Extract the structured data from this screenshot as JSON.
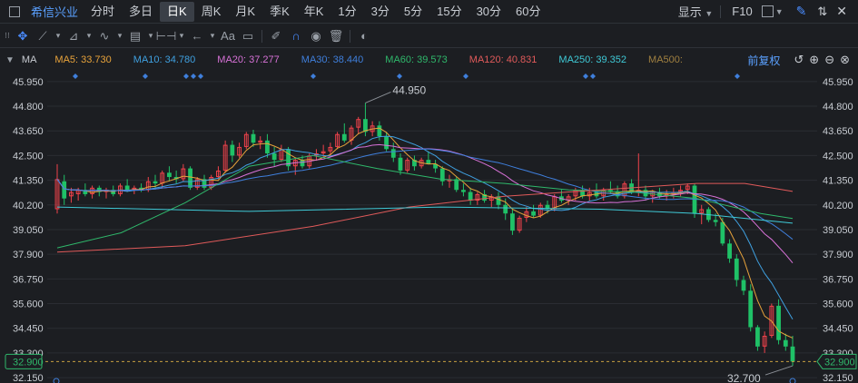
{
  "header": {
    "stock_name": "希信兴业",
    "periods": [
      "分时",
      "多日",
      "日K",
      "周K",
      "月K",
      "季K",
      "年K",
      "1分",
      "3分",
      "5分",
      "15分",
      "30分",
      "60分"
    ],
    "active_period": "日K",
    "display_label": "显示",
    "f10_label": "F10"
  },
  "toolbar": {
    "text_tool_label": "Aa",
    "icons": [
      "move-icon",
      "line-icon",
      "polyline-icon",
      "wave-icon",
      "fib-icon",
      "range-icon",
      "arrow-left-icon",
      "text-icon",
      "comment-icon",
      "pen-icon",
      "magnet-icon",
      "eye-icon",
      "trash-icon",
      "toggle-icon"
    ]
  },
  "ma_bar": {
    "indicator": "MA",
    "items": [
      {
        "label": "MA5: 33.730",
        "color": "#e8a33b"
      },
      {
        "label": "MA10: 34.780",
        "color": "#3fa0e0"
      },
      {
        "label": "MA20: 37.277",
        "color": "#d872d8"
      },
      {
        "label": "MA30: 38.440",
        "color": "#3f7fdc"
      },
      {
        "label": "MA60: 39.573",
        "color": "#2fb86b"
      },
      {
        "label": "MA120: 40.831",
        "color": "#e05a5a"
      },
      {
        "label": "MA250: 39.352",
        "color": "#3fc9d6"
      },
      {
        "label": "MA500:",
        "color": "#a08040"
      }
    ],
    "adjust_label": "前复权"
  },
  "chart_data": {
    "type": "candlestick",
    "ylim": [
      31.9,
      46.45
    ],
    "y_ticks": [
      "45.950",
      "44.800",
      "43.650",
      "42.500",
      "41.350",
      "40.200",
      "39.050",
      "37.900",
      "36.750",
      "35.600",
      "34.450",
      "33.300",
      "32.150"
    ],
    "current_price": "32.900",
    "high_label": "44.950",
    "low_label": "32.700",
    "up_color": "#f0424b",
    "down_color": "#1fc167",
    "candles": [
      {
        "o": 40.0,
        "h": 42.1,
        "l": 39.8,
        "c": 41.4
      },
      {
        "o": 41.3,
        "h": 41.6,
        "l": 40.2,
        "c": 40.5
      },
      {
        "o": 40.6,
        "h": 41.0,
        "l": 40.3,
        "c": 40.8
      },
      {
        "o": 40.7,
        "h": 41.0,
        "l": 40.4,
        "c": 40.9
      },
      {
        "o": 40.9,
        "h": 41.2,
        "l": 40.6,
        "c": 40.7
      },
      {
        "o": 40.7,
        "h": 41.1,
        "l": 40.5,
        "c": 41.0
      },
      {
        "o": 41.0,
        "h": 41.1,
        "l": 40.6,
        "c": 40.8
      },
      {
        "o": 40.8,
        "h": 41.0,
        "l": 40.5,
        "c": 40.9
      },
      {
        "o": 40.9,
        "h": 41.1,
        "l": 40.6,
        "c": 40.7
      },
      {
        "o": 40.7,
        "h": 41.2,
        "l": 40.6,
        "c": 41.1
      },
      {
        "o": 41.1,
        "h": 41.4,
        "l": 40.8,
        "c": 40.9
      },
      {
        "o": 40.9,
        "h": 41.1,
        "l": 40.7,
        "c": 41.0
      },
      {
        "o": 41.0,
        "h": 41.2,
        "l": 40.8,
        "c": 40.9
      },
      {
        "o": 40.9,
        "h": 41.5,
        "l": 40.8,
        "c": 41.3
      },
      {
        "o": 41.3,
        "h": 41.6,
        "l": 41.0,
        "c": 41.2
      },
      {
        "o": 41.2,
        "h": 41.8,
        "l": 41.0,
        "c": 41.7
      },
      {
        "o": 41.7,
        "h": 42.0,
        "l": 41.3,
        "c": 41.5
      },
      {
        "o": 41.5,
        "h": 41.8,
        "l": 41.2,
        "c": 41.4
      },
      {
        "o": 41.4,
        "h": 42.1,
        "l": 41.3,
        "c": 41.9
      },
      {
        "o": 41.9,
        "h": 42.0,
        "l": 40.9,
        "c": 41.0
      },
      {
        "o": 41.0,
        "h": 41.5,
        "l": 40.9,
        "c": 41.4
      },
      {
        "o": 41.4,
        "h": 41.6,
        "l": 40.9,
        "c": 41.0
      },
      {
        "o": 41.0,
        "h": 41.6,
        "l": 40.9,
        "c": 41.5
      },
      {
        "o": 41.5,
        "h": 42.0,
        "l": 41.4,
        "c": 41.8
      },
      {
        "o": 41.8,
        "h": 43.2,
        "l": 41.7,
        "c": 43.0
      },
      {
        "o": 43.0,
        "h": 43.2,
        "l": 42.2,
        "c": 42.5
      },
      {
        "o": 42.5,
        "h": 43.1,
        "l": 42.4,
        "c": 42.9
      },
      {
        "o": 42.9,
        "h": 43.6,
        "l": 42.8,
        "c": 43.5
      },
      {
        "o": 43.5,
        "h": 43.7,
        "l": 42.9,
        "c": 43.1
      },
      {
        "o": 43.1,
        "h": 43.4,
        "l": 42.8,
        "c": 43.2
      },
      {
        "o": 43.2,
        "h": 43.5,
        "l": 42.4,
        "c": 42.6
      },
      {
        "o": 42.6,
        "h": 42.9,
        "l": 42.0,
        "c": 42.3
      },
      {
        "o": 42.3,
        "h": 43.0,
        "l": 42.2,
        "c": 42.8
      },
      {
        "o": 42.8,
        "h": 42.9,
        "l": 41.8,
        "c": 42.0
      },
      {
        "o": 42.0,
        "h": 42.4,
        "l": 41.6,
        "c": 42.3
      },
      {
        "o": 42.3,
        "h": 42.5,
        "l": 41.9,
        "c": 42.0
      },
      {
        "o": 42.0,
        "h": 42.6,
        "l": 41.9,
        "c": 42.5
      },
      {
        "o": 42.5,
        "h": 42.8,
        "l": 42.3,
        "c": 42.6
      },
      {
        "o": 42.6,
        "h": 43.0,
        "l": 42.4,
        "c": 42.7
      },
      {
        "o": 42.7,
        "h": 43.1,
        "l": 42.5,
        "c": 42.9
      },
      {
        "o": 42.9,
        "h": 43.6,
        "l": 42.8,
        "c": 43.5
      },
      {
        "o": 43.5,
        "h": 44.0,
        "l": 43.1,
        "c": 43.2
      },
      {
        "o": 43.2,
        "h": 43.9,
        "l": 43.0,
        "c": 43.8
      },
      {
        "o": 43.8,
        "h": 44.3,
        "l": 43.5,
        "c": 44.2
      },
      {
        "o": 44.2,
        "h": 44.95,
        "l": 43.4,
        "c": 43.6
      },
      {
        "o": 43.6,
        "h": 44.1,
        "l": 43.4,
        "c": 43.9
      },
      {
        "o": 43.9,
        "h": 44.1,
        "l": 43.2,
        "c": 43.4
      },
      {
        "o": 43.4,
        "h": 43.6,
        "l": 42.7,
        "c": 42.8
      },
      {
        "o": 42.8,
        "h": 43.1,
        "l": 42.2,
        "c": 42.4
      },
      {
        "o": 42.4,
        "h": 42.6,
        "l": 41.6,
        "c": 41.8
      },
      {
        "o": 41.8,
        "h": 42.4,
        "l": 41.7,
        "c": 42.3
      },
      {
        "o": 42.3,
        "h": 42.5,
        "l": 41.8,
        "c": 42.0
      },
      {
        "o": 42.0,
        "h": 42.4,
        "l": 41.9,
        "c": 42.3
      },
      {
        "o": 42.3,
        "h": 42.7,
        "l": 42.1,
        "c": 42.1
      },
      {
        "o": 42.1,
        "h": 42.3,
        "l": 41.7,
        "c": 41.9
      },
      {
        "o": 41.9,
        "h": 42.0,
        "l": 41.1,
        "c": 41.3
      },
      {
        "o": 41.3,
        "h": 41.6,
        "l": 41.0,
        "c": 41.4
      },
      {
        "o": 41.4,
        "h": 41.5,
        "l": 40.8,
        "c": 40.9
      },
      {
        "o": 40.9,
        "h": 41.2,
        "l": 40.6,
        "c": 40.8
      },
      {
        "o": 40.8,
        "h": 41.0,
        "l": 40.2,
        "c": 40.4
      },
      {
        "o": 40.4,
        "h": 40.8,
        "l": 40.2,
        "c": 40.7
      },
      {
        "o": 40.7,
        "h": 40.9,
        "l": 40.3,
        "c": 40.4
      },
      {
        "o": 40.4,
        "h": 40.7,
        "l": 40.1,
        "c": 40.6
      },
      {
        "o": 40.6,
        "h": 40.8,
        "l": 40.0,
        "c": 40.2
      },
      {
        "o": 40.2,
        "h": 40.5,
        "l": 39.5,
        "c": 39.8
      },
      {
        "o": 39.8,
        "h": 40.0,
        "l": 38.8,
        "c": 39.0
      },
      {
        "o": 39.0,
        "h": 39.7,
        "l": 38.9,
        "c": 39.6
      },
      {
        "o": 39.6,
        "h": 40.1,
        "l": 39.4,
        "c": 39.9
      },
      {
        "o": 39.9,
        "h": 40.2,
        "l": 39.6,
        "c": 39.7
      },
      {
        "o": 39.7,
        "h": 40.3,
        "l": 39.6,
        "c": 40.2
      },
      {
        "o": 40.2,
        "h": 40.4,
        "l": 39.8,
        "c": 40.0
      },
      {
        "o": 40.0,
        "h": 40.7,
        "l": 39.9,
        "c": 40.6
      },
      {
        "o": 40.6,
        "h": 40.9,
        "l": 40.3,
        "c": 40.4
      },
      {
        "o": 40.4,
        "h": 40.7,
        "l": 40.2,
        "c": 40.6
      },
      {
        "o": 40.6,
        "h": 41.0,
        "l": 40.4,
        "c": 40.9
      },
      {
        "o": 40.9,
        "h": 41.1,
        "l": 40.5,
        "c": 40.6
      },
      {
        "o": 40.6,
        "h": 41.0,
        "l": 40.4,
        "c": 40.8
      },
      {
        "o": 40.8,
        "h": 41.2,
        "l": 40.5,
        "c": 40.6
      },
      {
        "o": 40.6,
        "h": 41.0,
        "l": 40.4,
        "c": 40.9
      },
      {
        "o": 40.9,
        "h": 41.3,
        "l": 40.7,
        "c": 40.8
      },
      {
        "o": 40.8,
        "h": 41.1,
        "l": 40.5,
        "c": 40.6
      },
      {
        "o": 40.6,
        "h": 41.3,
        "l": 40.5,
        "c": 41.2
      },
      {
        "o": 41.2,
        "h": 41.4,
        "l": 40.7,
        "c": 40.8
      },
      {
        "o": 40.8,
        "h": 42.6,
        "l": 40.6,
        "c": 40.9
      },
      {
        "o": 40.9,
        "h": 41.1,
        "l": 40.4,
        "c": 40.6
      },
      {
        "o": 40.6,
        "h": 40.9,
        "l": 40.3,
        "c": 40.8
      },
      {
        "o": 40.8,
        "h": 41.0,
        "l": 40.5,
        "c": 40.6
      },
      {
        "o": 40.6,
        "h": 40.9,
        "l": 40.4,
        "c": 40.7
      },
      {
        "o": 40.7,
        "h": 41.0,
        "l": 40.5,
        "c": 40.8
      },
      {
        "o": 40.8,
        "h": 41.1,
        "l": 40.6,
        "c": 40.9
      },
      {
        "o": 40.9,
        "h": 41.2,
        "l": 40.7,
        "c": 41.1
      },
      {
        "o": 41.1,
        "h": 41.2,
        "l": 39.6,
        "c": 39.8
      },
      {
        "o": 39.8,
        "h": 40.2,
        "l": 39.3,
        "c": 40.0
      },
      {
        "o": 40.0,
        "h": 40.1,
        "l": 39.4,
        "c": 39.5
      },
      {
        "o": 39.5,
        "h": 39.8,
        "l": 39.2,
        "c": 39.4
      },
      {
        "o": 39.4,
        "h": 39.6,
        "l": 38.3,
        "c": 38.4
      },
      {
        "o": 38.4,
        "h": 38.6,
        "l": 37.5,
        "c": 37.7
      },
      {
        "o": 37.7,
        "h": 37.9,
        "l": 36.4,
        "c": 36.7
      },
      {
        "o": 36.7,
        "h": 36.9,
        "l": 36.0,
        "c": 36.2
      },
      {
        "o": 36.2,
        "h": 36.5,
        "l": 34.3,
        "c": 34.5
      },
      {
        "o": 34.5,
        "h": 34.6,
        "l": 33.4,
        "c": 33.6
      },
      {
        "o": 33.6,
        "h": 34.3,
        "l": 33.3,
        "c": 34.1
      },
      {
        "o": 34.1,
        "h": 35.6,
        "l": 34.0,
        "c": 35.5
      },
      {
        "o": 35.5,
        "h": 35.8,
        "l": 33.7,
        "c": 33.9
      },
      {
        "o": 33.9,
        "h": 34.2,
        "l": 33.4,
        "c": 33.6
      },
      {
        "o": 33.6,
        "h": 34.1,
        "l": 32.7,
        "c": 32.9
      }
    ],
    "ma_lines": [
      {
        "key": "MA5",
        "color": "#e8a33b",
        "values": []
      },
      {
        "key": "MA10",
        "color": "#3fa0e0",
        "values": []
      },
      {
        "key": "MA20",
        "color": "#d872d8",
        "values": []
      },
      {
        "key": "MA30",
        "color": "#3f7fdc",
        "values": []
      },
      {
        "key": "MA60",
        "color": "#2fb86b",
        "points": [
          [
            0,
            38.2
          ],
          [
            20,
            38.9
          ],
          [
            40,
            40.3
          ],
          [
            60,
            42.0
          ],
          [
            80,
            42.5
          ],
          [
            100,
            41.9
          ],
          [
            120,
            41.4
          ],
          [
            140,
            41.2
          ],
          [
            160,
            40.9
          ],
          [
            180,
            40.8
          ],
          [
            200,
            40.5
          ],
          [
            220,
            39.8
          ],
          [
            230,
            39.57
          ]
        ]
      },
      {
        "key": "MA120",
        "color": "#e05a5a",
        "points": [
          [
            0,
            38.0
          ],
          [
            40,
            38.3
          ],
          [
            80,
            39.2
          ],
          [
            110,
            40.1
          ],
          [
            140,
            40.6
          ],
          [
            170,
            40.9
          ],
          [
            200,
            41.2
          ],
          [
            215,
            41.2
          ],
          [
            230,
            40.83
          ]
        ]
      },
      {
        "key": "MA250",
        "color": "#3fc9d6",
        "points": [
          [
            0,
            40.1
          ],
          [
            60,
            39.9
          ],
          [
            120,
            40.1
          ],
          [
            170,
            40.0
          ],
          [
            200,
            39.8
          ],
          [
            230,
            39.35
          ]
        ]
      }
    ],
    "ma_point_scale": 230
  }
}
